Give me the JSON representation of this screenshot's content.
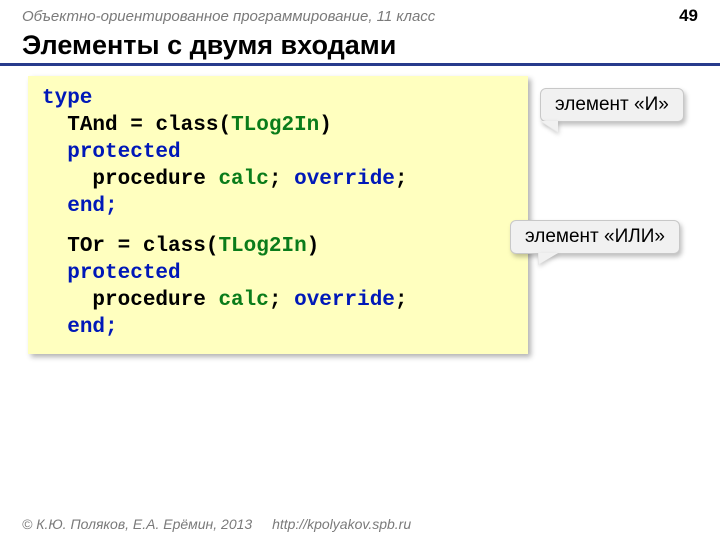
{
  "header": {
    "subject": "Объектно-ориентированное программирование, 11 класс",
    "page": "49"
  },
  "title": "Элементы с двумя входами",
  "code": {
    "kw_type": "type",
    "line1": {
      "name": "TAnd",
      "eq": " = class(",
      "base": "TLog2In",
      "close": ")"
    },
    "kw_protected": "protected",
    "proc": {
      "kw": "procedure ",
      "name": "calc",
      "semi": "; ",
      "over": "override",
      "semi2": ";"
    },
    "kw_end": "end;",
    "line2": {
      "name": "TOr",
      "eq": " = class(",
      "base": "TLog2In",
      "close": ")"
    }
  },
  "callouts": {
    "and": "элемент «И»",
    "or": "элемент «ИЛИ»"
  },
  "footer": {
    "copyright": "© К.Ю. Поляков, Е.А. Ерёмин, 2013",
    "url": "http://kpolyakov.spb.ru"
  },
  "styles": {
    "accent_underline": "#283b8c",
    "code_bg": "#ffffbf",
    "kw_blue": "#0018b8",
    "kw_green": "#0a7c1a",
    "callout_bg": "#f1f1f1"
  }
}
